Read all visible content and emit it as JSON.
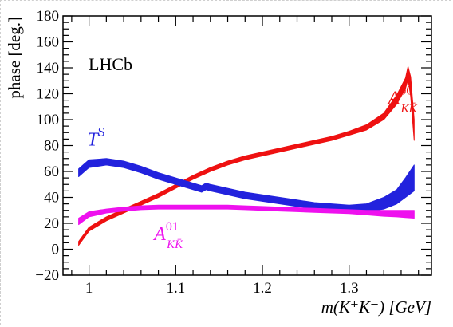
{
  "chart_data": {
    "type": "line",
    "experiment_label": "LHCb",
    "xlabel": "m(K⁺K⁻) [GeV]",
    "ylabel": "phase  [deg.]",
    "xlim": [
      0.97,
      1.395
    ],
    "ylim": [
      -20,
      180
    ],
    "xticks": [
      1.0,
      1.1,
      1.2,
      1.3
    ],
    "xtick_labels": [
      "1",
      "1.1",
      "1.2",
      "1.3"
    ],
    "yticks": [
      -20,
      0,
      20,
      40,
      60,
      80,
      100,
      120,
      140,
      160,
      180
    ],
    "grid": false,
    "series": [
      {
        "name": "A_{KK̄}^{00}",
        "label_main": "A",
        "label_sup": "00",
        "label_sub": "KK̄",
        "color": "#ee1111",
        "label_pos": [
          1.345,
          112
        ],
        "x": [
          0.988,
          1.0,
          1.02,
          1.04,
          1.06,
          1.08,
          1.1,
          1.12,
          1.14,
          1.16,
          1.18,
          1.2,
          1.22,
          1.24,
          1.26,
          1.28,
          1.3,
          1.32,
          1.34,
          1.355,
          1.365,
          1.368,
          1.371,
          1.375
        ],
        "lo": [
          3,
          14,
          22,
          28,
          34,
          40,
          47,
          54,
          60,
          65,
          69,
          72,
          75,
          78,
          81,
          84,
          88,
          92,
          100,
          112,
          124,
          131,
          118,
          84
        ],
        "hi": [
          6,
          17,
          25,
          31,
          37,
          43,
          50,
          57,
          63,
          68,
          72,
          75,
          78,
          81,
          84,
          87,
          91,
          96,
          105,
          119,
          132,
          141,
          133,
          100
        ]
      },
      {
        "name": "T^S",
        "label_main": "T",
        "label_sup": "S",
        "label_sub": "",
        "color": "#2222dd",
        "label_pos": [
          0.998,
          80
        ],
        "x": [
          0.988,
          1.0,
          1.02,
          1.04,
          1.06,
          1.08,
          1.1,
          1.12,
          1.13,
          1.135,
          1.14,
          1.16,
          1.18,
          1.2,
          1.22,
          1.24,
          1.26,
          1.28,
          1.3,
          1.32,
          1.34,
          1.355,
          1.365,
          1.375
        ],
        "lo": [
          56,
          63,
          65,
          63,
          59,
          54,
          50,
          46,
          44,
          46,
          45,
          42,
          39,
          37,
          35,
          33,
          31,
          30,
          29,
          29,
          31,
          35,
          40,
          45
        ],
        "hi": [
          62,
          69,
          70,
          68,
          64,
          59,
          55,
          51,
          49,
          51,
          50,
          47,
          44,
          42,
          40,
          38,
          36,
          35,
          34,
          35,
          40,
          46,
          55,
          65
        ]
      },
      {
        "name": "A_{KK̄}^{01}",
        "label_main": "A",
        "label_sup": "01",
        "label_sub": "KK̄",
        "color": "#ee11ee",
        "label_pos": [
          1.075,
          7
        ],
        "x": [
          0.988,
          1.0,
          1.02,
          1.04,
          1.06,
          1.08,
          1.1,
          1.12,
          1.14,
          1.16,
          1.18,
          1.2,
          1.22,
          1.24,
          1.26,
          1.28,
          1.3,
          1.32,
          1.34,
          1.355,
          1.365,
          1.375
        ],
        "lo": [
          19,
          25,
          28,
          29.5,
          30.5,
          31,
          31,
          31,
          31,
          31,
          30.5,
          30,
          29.5,
          29,
          28.5,
          28,
          27.5,
          26.5,
          25.5,
          25,
          24.5,
          24
        ],
        "hi": [
          24,
          29,
          31,
          32.5,
          33.5,
          34,
          34,
          34,
          34,
          34,
          33.5,
          33,
          32.5,
          32,
          31.5,
          31,
          30.5,
          30,
          30,
          30,
          30,
          30
        ]
      }
    ]
  }
}
